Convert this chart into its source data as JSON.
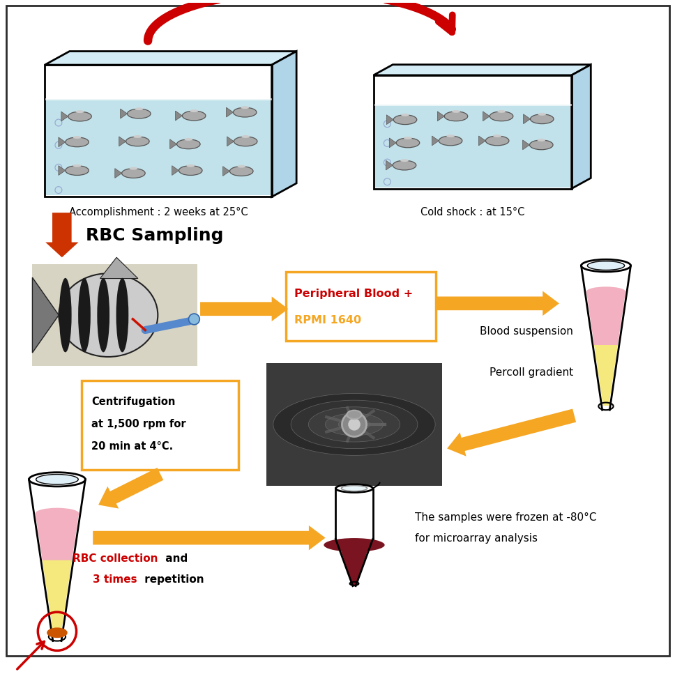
{
  "bg_color": "#ffffff",
  "border_color": "#2c2c2c",
  "tank1_label": "Accomplishment : 2 weeks at 25°C",
  "tank2_label": "Cold shock : at 15°C",
  "rbc_sampling_label": "RBC Sampling",
  "box1_line1": "Peripheral Blood +",
  "box1_line2": "RPMI 1640",
  "blood_suspension": "Blood suspension",
  "percoll_gradient": "Percoll gradient",
  "centrifugation_line1": "Centrifugation",
  "centrifugation_line2": "at 1,500 rpm for",
  "centrifugation_line3": "20 min at 4°C.",
  "frozen_line1": "The samples were frozen at -80°C",
  "frozen_line2": "for microarray analysis",
  "rbc_red": "RBC collection",
  "rbc_black1": " and",
  "rbc_red2": "3 times",
  "rbc_black2": " repetition",
  "tank_water": "#b8dde8",
  "tank_top": "#d4ecf5",
  "tank_side": "#b0d5e8",
  "tube_pink": "#f2b0c0",
  "tube_yellow": "#f5e87c",
  "tube_dark_red": "#7a1420",
  "arr_orange": "#f5a623",
  "arr_red": "#cc0000",
  "box_orange": "#f5a623",
  "col_red": "#cc0000",
  "col_orange": "#f5a623"
}
